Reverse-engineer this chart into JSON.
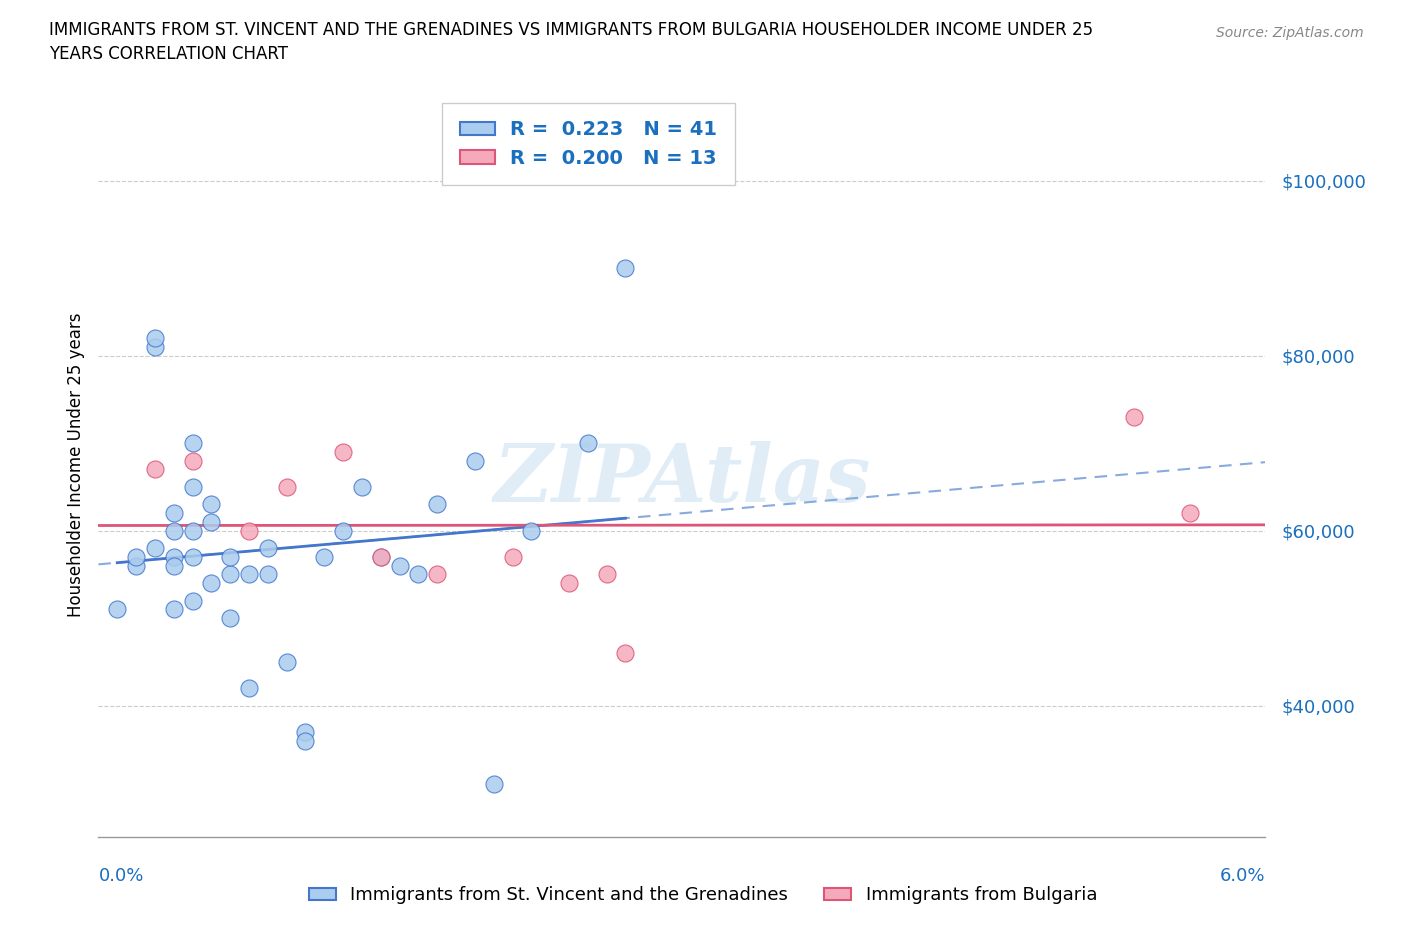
{
  "title_line1": "IMMIGRANTS FROM ST. VINCENT AND THE GRENADINES VS IMMIGRANTS FROM BULGARIA HOUSEHOLDER INCOME UNDER 25",
  "title_line2": "YEARS CORRELATION CHART",
  "source": "Source: ZipAtlas.com",
  "ylabel": "Householder Income Under 25 years",
  "legend_label1": "Immigrants from St. Vincent and the Grenadines",
  "legend_label2": "Immigrants from Bulgaria",
  "y_tick_labels": [
    "$40,000",
    "$60,000",
    "$80,000",
    "$100,000"
  ],
  "y_tick_values": [
    40000,
    60000,
    80000,
    100000
  ],
  "xlim": [
    0.0,
    0.062
  ],
  "ylim": [
    25000,
    110000
  ],
  "color1": "#aaccee",
  "color2": "#f4aabb",
  "trendline1_color": "#4477cc",
  "trendline2_color": "#dd5577",
  "trendline1_dash_color": "#88aadd",
  "watermark": "ZIPAtlas",
  "watermark_color": "#c8ddf0",
  "sv_x": [
    0.001,
    0.002,
    0.002,
    0.003,
    0.003,
    0.003,
    0.004,
    0.004,
    0.004,
    0.004,
    0.004,
    0.005,
    0.005,
    0.005,
    0.005,
    0.005,
    0.006,
    0.006,
    0.006,
    0.007,
    0.007,
    0.007,
    0.008,
    0.008,
    0.009,
    0.009,
    0.01,
    0.011,
    0.011,
    0.012,
    0.013,
    0.014,
    0.015,
    0.016,
    0.017,
    0.018,
    0.02,
    0.021,
    0.023,
    0.026,
    0.028
  ],
  "sv_y": [
    51000,
    56000,
    57000,
    58000,
    81000,
    82000,
    62000,
    60000,
    57000,
    56000,
    51000,
    70000,
    65000,
    60000,
    57000,
    52000,
    54000,
    61000,
    63000,
    50000,
    55000,
    57000,
    42000,
    55000,
    55000,
    58000,
    45000,
    37000,
    36000,
    57000,
    60000,
    65000,
    57000,
    56000,
    55000,
    63000,
    68000,
    31000,
    60000,
    70000,
    90000
  ],
  "bg_x": [
    0.003,
    0.005,
    0.008,
    0.01,
    0.013,
    0.015,
    0.018,
    0.022,
    0.025,
    0.027,
    0.028,
    0.055,
    0.058
  ],
  "bg_y": [
    67000,
    68000,
    60000,
    65000,
    69000,
    57000,
    55000,
    57000,
    54000,
    55000,
    46000,
    73000,
    62000
  ]
}
